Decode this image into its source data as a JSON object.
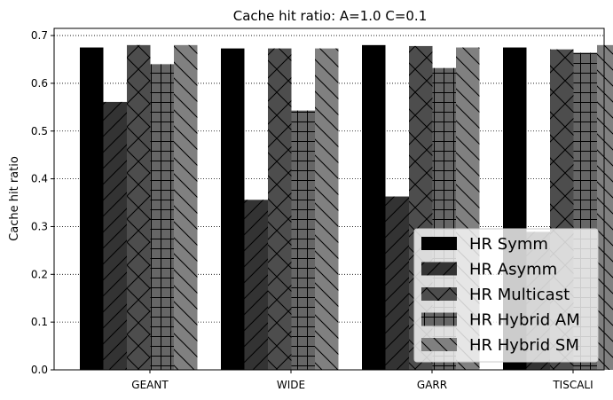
{
  "chart_data": {
    "type": "bar",
    "title": "Cache hit ratio: A=1.0 C=0.1",
    "xlabel": "",
    "ylabel": "Cache hit ratio",
    "ylim": [
      0,
      0.715
    ],
    "yticks": [
      0.0,
      0.1,
      0.2,
      0.3,
      0.4,
      0.5,
      0.6,
      0.7
    ],
    "ytick_labels": [
      "0.0",
      "0.1",
      "0.2",
      "0.3",
      "0.4",
      "0.5",
      "0.6",
      "0.7"
    ],
    "grid": "y, dotted",
    "legend_position": "bottom-right",
    "categories": [
      "GEANT",
      "WIDE",
      "GARR",
      "TISCALI"
    ],
    "series": [
      {
        "name": "HR Symm",
        "values": [
          0.675,
          0.673,
          0.68,
          0.675
        ],
        "color": "#000000",
        "hatch": "none"
      },
      {
        "name": "HR Asymm",
        "values": [
          0.561,
          0.356,
          0.363,
          0.289
        ],
        "color": "#333333",
        "hatch": "diagonal-forward"
      },
      {
        "name": "HR Multicast",
        "values": [
          0.68,
          0.673,
          0.678,
          0.671
        ],
        "color": "#4d4d4d",
        "hatch": "cross"
      },
      {
        "name": "HR Hybrid AM",
        "values": [
          0.64,
          0.543,
          0.632,
          0.664
        ],
        "color": "#666666",
        "hatch": "plus"
      },
      {
        "name": "HR Hybrid SM",
        "values": [
          0.68,
          0.673,
          0.675,
          0.68
        ],
        "color": "#808080",
        "hatch": "diagonal-back"
      }
    ]
  }
}
